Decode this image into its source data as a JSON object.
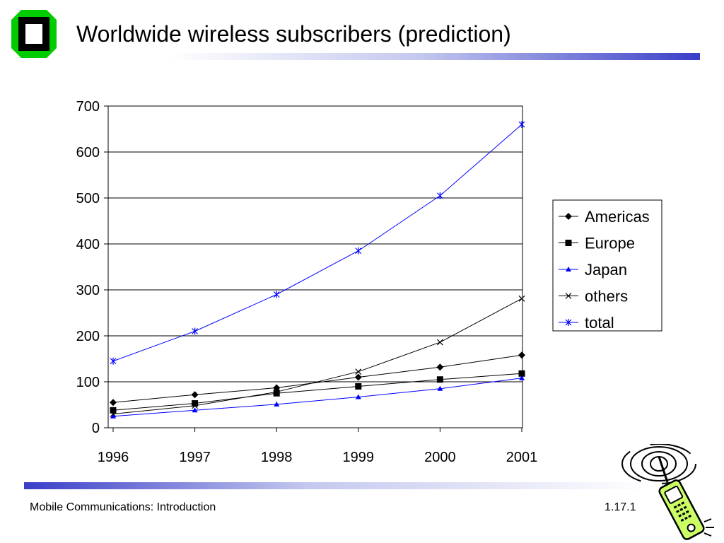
{
  "slide": {
    "title": "Worldwide wireless subscribers (prediction)",
    "footer_left": "Mobile Communications: Introduction",
    "footer_right": "1.17.1"
  },
  "colors": {
    "accent_blue": "#0000ff",
    "logo_green": "#00cc00",
    "black": "#000000"
  },
  "icons": {
    "logo": "university-logo-icon",
    "phone": "cell-phone-clipart-icon"
  },
  "chart_data": {
    "type": "line",
    "title": "",
    "xlabel": "",
    "ylabel": "",
    "categories": [
      "1996",
      "1997",
      "1998",
      "1999",
      "2000",
      "2001"
    ],
    "ylim": [
      0,
      700
    ],
    "yticks": [
      0,
      100,
      200,
      300,
      400,
      500,
      600,
      700
    ],
    "grid": "horizontal",
    "legend_position": "right",
    "series": [
      {
        "name": "Americas",
        "values": [
          55,
          72,
          87,
          110,
          132,
          158
        ],
        "color": "#000000",
        "marker": "diamond"
      },
      {
        "name": "Europe",
        "values": [
          38,
          53,
          75,
          90,
          105,
          118
        ],
        "color": "#000000",
        "marker": "square"
      },
      {
        "name": "Japan",
        "values": [
          25,
          38,
          51,
          67,
          85,
          108
        ],
        "color": "#0000ff",
        "marker": "triangle"
      },
      {
        "name": "others",
        "values": [
          30,
          48,
          78,
          122,
          186,
          281
        ],
        "color": "#000000",
        "marker": "x"
      },
      {
        "name": "total",
        "values": [
          145,
          210,
          290,
          385,
          505,
          660
        ],
        "color": "#0000ff",
        "marker": "star"
      }
    ]
  }
}
